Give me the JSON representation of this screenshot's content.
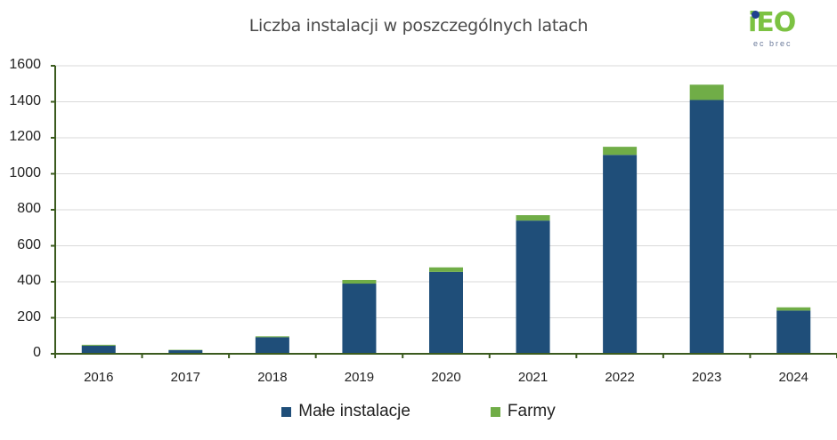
{
  "chart_data": {
    "type": "bar",
    "stacked": true,
    "title": "Liczba instalacji w poszczególnych latach",
    "xlabel": "",
    "ylabel": "",
    "ylim": [
      0,
      1600
    ],
    "yticks": [
      0,
      200,
      400,
      600,
      800,
      1000,
      1200,
      1400,
      1600
    ],
    "grid": true,
    "legend_position": "bottom",
    "categories": [
      "2016",
      "2017",
      "2018",
      "2019",
      "2020",
      "2021",
      "2022",
      "2023",
      "2024"
    ],
    "series": [
      {
        "name": "Małe instalacje",
        "color": "#1f4e79",
        "values": [
          45,
          20,
          92,
          390,
          455,
          740,
          1105,
          1410,
          240
        ]
      },
      {
        "name": "Farmy",
        "color": "#70ad47",
        "values": [
          5,
          2,
          5,
          20,
          25,
          30,
          45,
          85,
          18
        ]
      }
    ]
  },
  "logo": {
    "main": "iEO",
    "sub": "ec brec"
  },
  "legend": [
    {
      "label": "Małe instalacje",
      "color": "#1f4e79"
    },
    {
      "label": "Farmy",
      "color": "#70ad47"
    }
  ],
  "colors": {
    "axis": "#3b5a1e",
    "grid": "#d9d9d9"
  }
}
